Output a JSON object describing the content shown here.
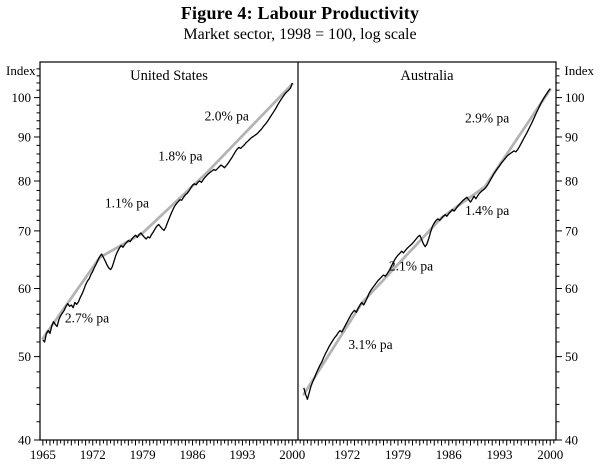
{
  "figure": {
    "title": "Figure 4: Labour Productivity",
    "subtitle": "Market sector, 1998 = 100, log scale",
    "axis_unit_label": "Index"
  },
  "chart_data": {
    "type": "line",
    "log_scale": true,
    "ylim": [
      40,
      110
    ],
    "yticks": [
      40,
      50,
      60,
      70,
      80,
      90,
      100
    ],
    "y_minor_step": 2,
    "x_minor_step": 0.5,
    "grid": false,
    "series_color": "#000000",
    "trend_color": "#b3b3b3",
    "panels": [
      {
        "title": "United States",
        "xlim": [
          1964.6,
          2000.8
        ],
        "xtick_labels": [
          1965,
          1972,
          1979,
          1986,
          1993,
          2000
        ],
        "trend_segments": [
          {
            "x1": 1965,
            "y1": 52.5,
            "x2": 1973,
            "y2": 65.2,
            "label": "2.7% pa",
            "lx": 1971.2,
            "ly": 54.8
          },
          {
            "x1": 1973,
            "y1": 65.2,
            "x2": 1979,
            "y2": 69.6,
            "label": "1.1% pa",
            "lx": 1976.8,
            "ly": 74.5
          },
          {
            "x1": 1979,
            "y1": 69.6,
            "x2": 1988,
            "y2": 81.8,
            "label": "1.8% pa",
            "lx": 1984.3,
            "ly": 84.5
          },
          {
            "x1": 1988,
            "y1": 81.8,
            "x2": 2000,
            "y2": 103.7,
            "label": "2.0% pa",
            "lx": 1990.8,
            "ly": 94.0
          }
        ],
        "series": {
          "start": 1965,
          "step": 0.25,
          "values": [
            52.3,
            52.0,
            53.2,
            53.6,
            53.2,
            54.3,
            54.9,
            54.5,
            54.2,
            55.2,
            55.8,
            56.2,
            56.6,
            57.2,
            57.6,
            57.2,
            57.4,
            57.0,
            57.8,
            57.5,
            57.9,
            58.6,
            59.1,
            59.8,
            60.6,
            61.2,
            61.6,
            62.3,
            62.8,
            63.5,
            64.1,
            64.8,
            65.4,
            65.8,
            65.2,
            64.6,
            63.9,
            63.4,
            63.1,
            63.6,
            64.6,
            65.6,
            66.3,
            66.9,
            67.3,
            67.0,
            67.5,
            67.9,
            68.2,
            68.0,
            68.5,
            68.9,
            69.2,
            68.8,
            69.3,
            69.6,
            69.2,
            68.8,
            68.5,
            68.9,
            68.7,
            69.3,
            69.8,
            70.4,
            70.9,
            71.2,
            70.8,
            70.4,
            70.1,
            70.7,
            71.6,
            72.5,
            73.3,
            74.1,
            74.8,
            75.3,
            75.7,
            76.1,
            76.0,
            76.6,
            77.1,
            77.4,
            77.9,
            78.5,
            79.1,
            79.4,
            79.2,
            79.7,
            80.0,
            79.7,
            80.3,
            80.8,
            81.2,
            81.6,
            81.9,
            82.2,
            82.5,
            82.3,
            82.7,
            83.1,
            83.5,
            83.2,
            82.9,
            83.4,
            83.9,
            84.5,
            85.1,
            85.8,
            86.5,
            87.1,
            87.5,
            87.3,
            87.7,
            88.1,
            88.6,
            89.0,
            89.4,
            89.8,
            90.1,
            90.4,
            90.7,
            91.1,
            91.6,
            92.1,
            92.7,
            93.2,
            93.8,
            94.5,
            95.2,
            95.9,
            96.6,
            97.4,
            98.2,
            99.0,
            99.7,
            100.4,
            101.1,
            101.6,
            102.0,
            102.6,
            104.0
          ]
        }
      },
      {
        "title": "Australia",
        "xlim": [
          1965.2,
          2000.8
        ],
        "xtick_labels": [
          1972,
          1979,
          1986,
          1993,
          2000
        ],
        "trend_segments": [
          {
            "x1": 1966,
            "y1": 45.2,
            "x2": 1974,
            "y2": 57.7,
            "label": "3.1% pa",
            "lx": 1975.2,
            "ly": 51.0
          },
          {
            "x1": 1974,
            "y1": 57.7,
            "x2": 1985,
            "y2": 72.5,
            "label": "2.1% pa",
            "lx": 1980.8,
            "ly": 63.0
          },
          {
            "x1": 1985,
            "y1": 72.5,
            "x2": 1991,
            "y2": 78.8,
            "label": "1.4% pa",
            "lx": 1991.3,
            "ly": 73.0
          },
          {
            "x1": 1991,
            "y1": 78.8,
            "x2": 2000,
            "y2": 102.2,
            "label": "2.9% pa",
            "lx": 1991.3,
            "ly": 93.5
          }
        ],
        "series": {
          "start": 1966,
          "step": 0.25,
          "values": [
            46.0,
            45.2,
            44.6,
            45.4,
            46.2,
            46.8,
            47.3,
            47.9,
            48.4,
            48.9,
            49.3,
            49.9,
            50.4,
            50.9,
            51.4,
            51.8,
            52.2,
            52.6,
            52.9,
            53.3,
            53.6,
            53.4,
            53.9,
            54.4,
            54.9,
            55.4,
            55.9,
            56.3,
            56.6,
            56.3,
            56.9,
            57.4,
            57.8,
            57.4,
            57.9,
            58.5,
            59.2,
            59.7,
            60.1,
            60.5,
            60.9,
            61.3,
            61.6,
            61.9,
            62.2,
            62.0,
            62.4,
            62.9,
            63.5,
            64.1,
            64.7,
            65.2,
            65.6,
            65.9,
            66.3,
            66.0,
            66.4,
            66.8,
            67.1,
            67.4,
            67.7,
            68.1,
            68.5,
            68.9,
            69.2,
            68.4,
            67.6,
            67.1,
            67.6,
            68.6,
            69.8,
            70.8,
            71.5,
            72.0,
            72.3,
            72.0,
            72.4,
            72.8,
            73.1,
            72.8,
            73.3,
            73.7,
            74.1,
            73.8,
            74.3,
            74.8,
            75.2,
            75.6,
            76.0,
            76.3,
            76.6,
            76.1,
            75.6,
            76.2,
            76.8,
            76.3,
            76.9,
            77.4,
            77.8,
            78.1,
            78.4,
            78.9,
            79.5,
            80.2,
            80.9,
            81.6,
            82.2,
            82.8,
            83.3,
            83.9,
            84.4,
            84.9,
            85.4,
            85.8,
            86.1,
            86.4,
            86.7,
            86.5,
            87.0,
            87.7,
            88.5,
            89.3,
            90.1,
            90.9,
            91.8,
            92.7,
            93.6,
            94.6,
            95.6,
            96.6,
            97.6,
            98.6,
            99.5,
            100.3,
            101.0,
            101.8,
            102.4
          ]
        }
      }
    ]
  }
}
